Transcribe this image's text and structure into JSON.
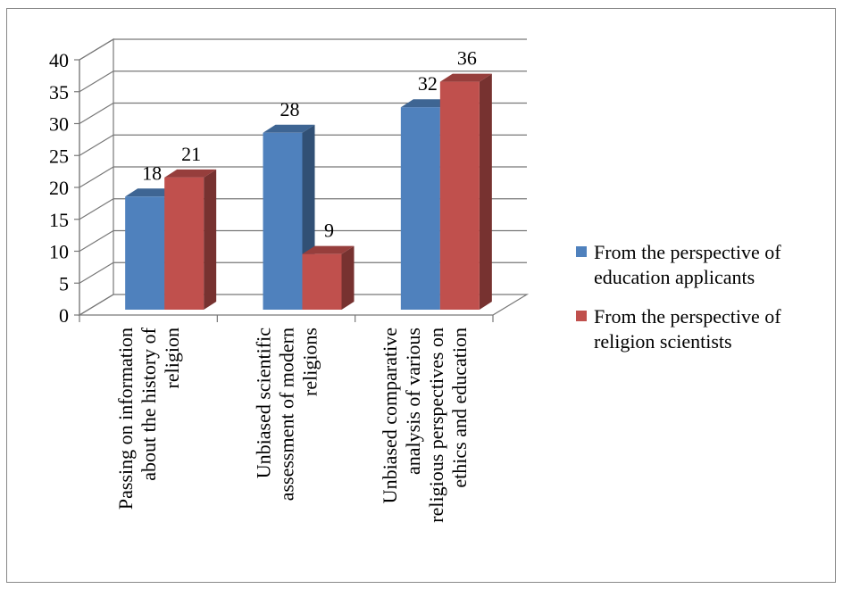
{
  "chart_data": {
    "type": "bar",
    "title": "",
    "xlabel": "",
    "ylabel": "",
    "ylim": [
      0,
      40
    ],
    "yticks": [
      0,
      5,
      10,
      15,
      20,
      25,
      30,
      35,
      40
    ],
    "grid": true,
    "legend_position": "right",
    "categories": [
      [
        "Passing on information",
        "about the history of",
        "religion"
      ],
      [
        "Unbiased scientific",
        "assessment of modern",
        "religions"
      ],
      [
        "Unbiased comparative",
        "analysis of various",
        "religious perspectives on",
        "ethics and education"
      ]
    ],
    "series": [
      {
        "name": [
          "From the perspective of",
          "education applicants"
        ],
        "color": "#4f81bd",
        "values": [
          18,
          28,
          32
        ]
      },
      {
        "name": [
          "From the perspective of",
          "religion scientists"
        ],
        "color": "#c0504d",
        "values": [
          21,
          9,
          36
        ]
      }
    ]
  }
}
